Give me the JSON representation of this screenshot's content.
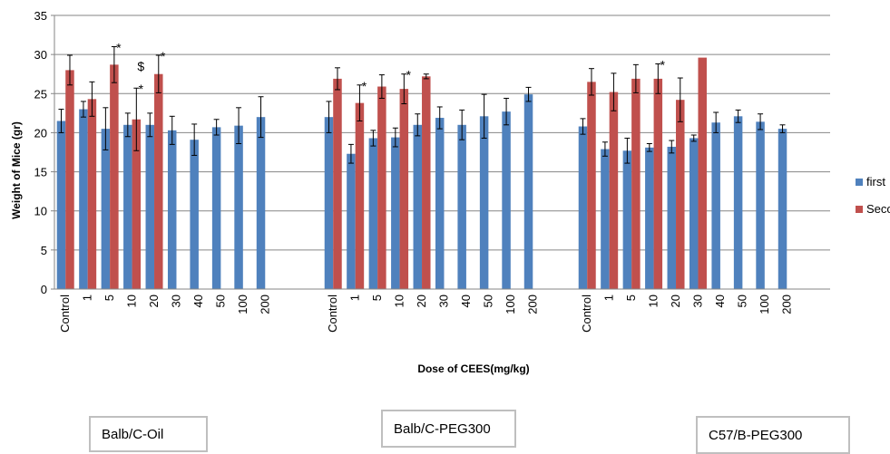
{
  "chart_data": {
    "type": "bar",
    "ylabel": "Weight of Mice (gr)",
    "xlabel": "Dose of CEES(mg/kg)",
    "ylim": [
      0,
      35
    ],
    "yticks": [
      "0",
      "5",
      "10",
      "15",
      "20",
      "25",
      "30",
      "35"
    ],
    "grid": true,
    "legend_position": "right",
    "series_meta": [
      {
        "name": "first",
        "color": "#4f81bd"
      },
      {
        "name": "Second",
        "color": "#c0504d"
      }
    ],
    "groups": [
      {
        "name": "Balb/C-Oil",
        "categories": [
          "Control",
          "1",
          "5",
          "10",
          "20",
          "30",
          "40",
          "50",
          "100",
          "200"
        ],
        "first": [
          21.5,
          23.0,
          20.5,
          21.0,
          21.0,
          20.3,
          19.1,
          20.7,
          20.9,
          22.0
        ],
        "first_err": [
          1.5,
          1.0,
          2.7,
          1.5,
          1.5,
          1.8,
          2.0,
          1.0,
          2.3,
          2.6
        ],
        "second": [
          28.0,
          24.3,
          28.7,
          21.7,
          27.5,
          null,
          null,
          null,
          null,
          null
        ],
        "second_err": [
          1.9,
          2.2,
          2.3,
          4.0,
          2.4,
          null,
          null,
          null,
          null,
          null
        ],
        "marks": [
          {
            "index": 2,
            "series": "second",
            "text": "*"
          },
          {
            "index": 3,
            "series": "second",
            "text": "*",
            "level": 0
          },
          {
            "index": 3,
            "series": "second",
            "text": "$",
            "level": 1
          },
          {
            "index": 4,
            "series": "second",
            "text": "*"
          }
        ]
      },
      {
        "name": "Balb/C-PEG300",
        "categories": [
          "Control",
          "1",
          "5",
          "10",
          "20",
          "30",
          "40",
          "50",
          "100",
          "200"
        ],
        "first": [
          22.0,
          17.3,
          19.3,
          19.4,
          21.0,
          21.9,
          21.0,
          22.1,
          22.7,
          24.9
        ],
        "first_err": [
          2.0,
          1.2,
          1.0,
          1.2,
          1.4,
          1.4,
          1.9,
          2.8,
          1.7,
          0.9
        ],
        "second": [
          26.9,
          23.8,
          25.9,
          25.6,
          27.2,
          null,
          null,
          null,
          null,
          null
        ],
        "second_err": [
          1.4,
          2.3,
          1.5,
          1.9,
          0.3,
          null,
          null,
          null,
          null,
          null
        ],
        "marks": [
          {
            "index": 1,
            "series": "second",
            "text": "*"
          },
          {
            "index": 3,
            "series": "second",
            "text": "*"
          }
        ]
      },
      {
        "name": "C57/B-PEG300",
        "categories": [
          "Control",
          "1",
          "5",
          "10",
          "20",
          "30",
          "40",
          "50",
          "100",
          "200"
        ],
        "first": [
          20.8,
          17.9,
          17.7,
          18.1,
          18.2,
          19.3,
          21.3,
          22.1,
          21.4,
          20.5
        ],
        "first_err": [
          1.0,
          0.9,
          1.6,
          0.5,
          0.8,
          0.4,
          1.3,
          0.8,
          1.0,
          0.5
        ],
        "second": [
          26.5,
          25.2,
          26.9,
          26.9,
          24.2,
          29.6,
          null,
          null,
          null,
          null
        ],
        "second_err": [
          1.7,
          2.4,
          1.8,
          1.9,
          2.8,
          0.0,
          null,
          null,
          null,
          null
        ],
        "marks": [
          {
            "index": 3,
            "series": "second",
            "text": "*"
          }
        ]
      }
    ]
  }
}
